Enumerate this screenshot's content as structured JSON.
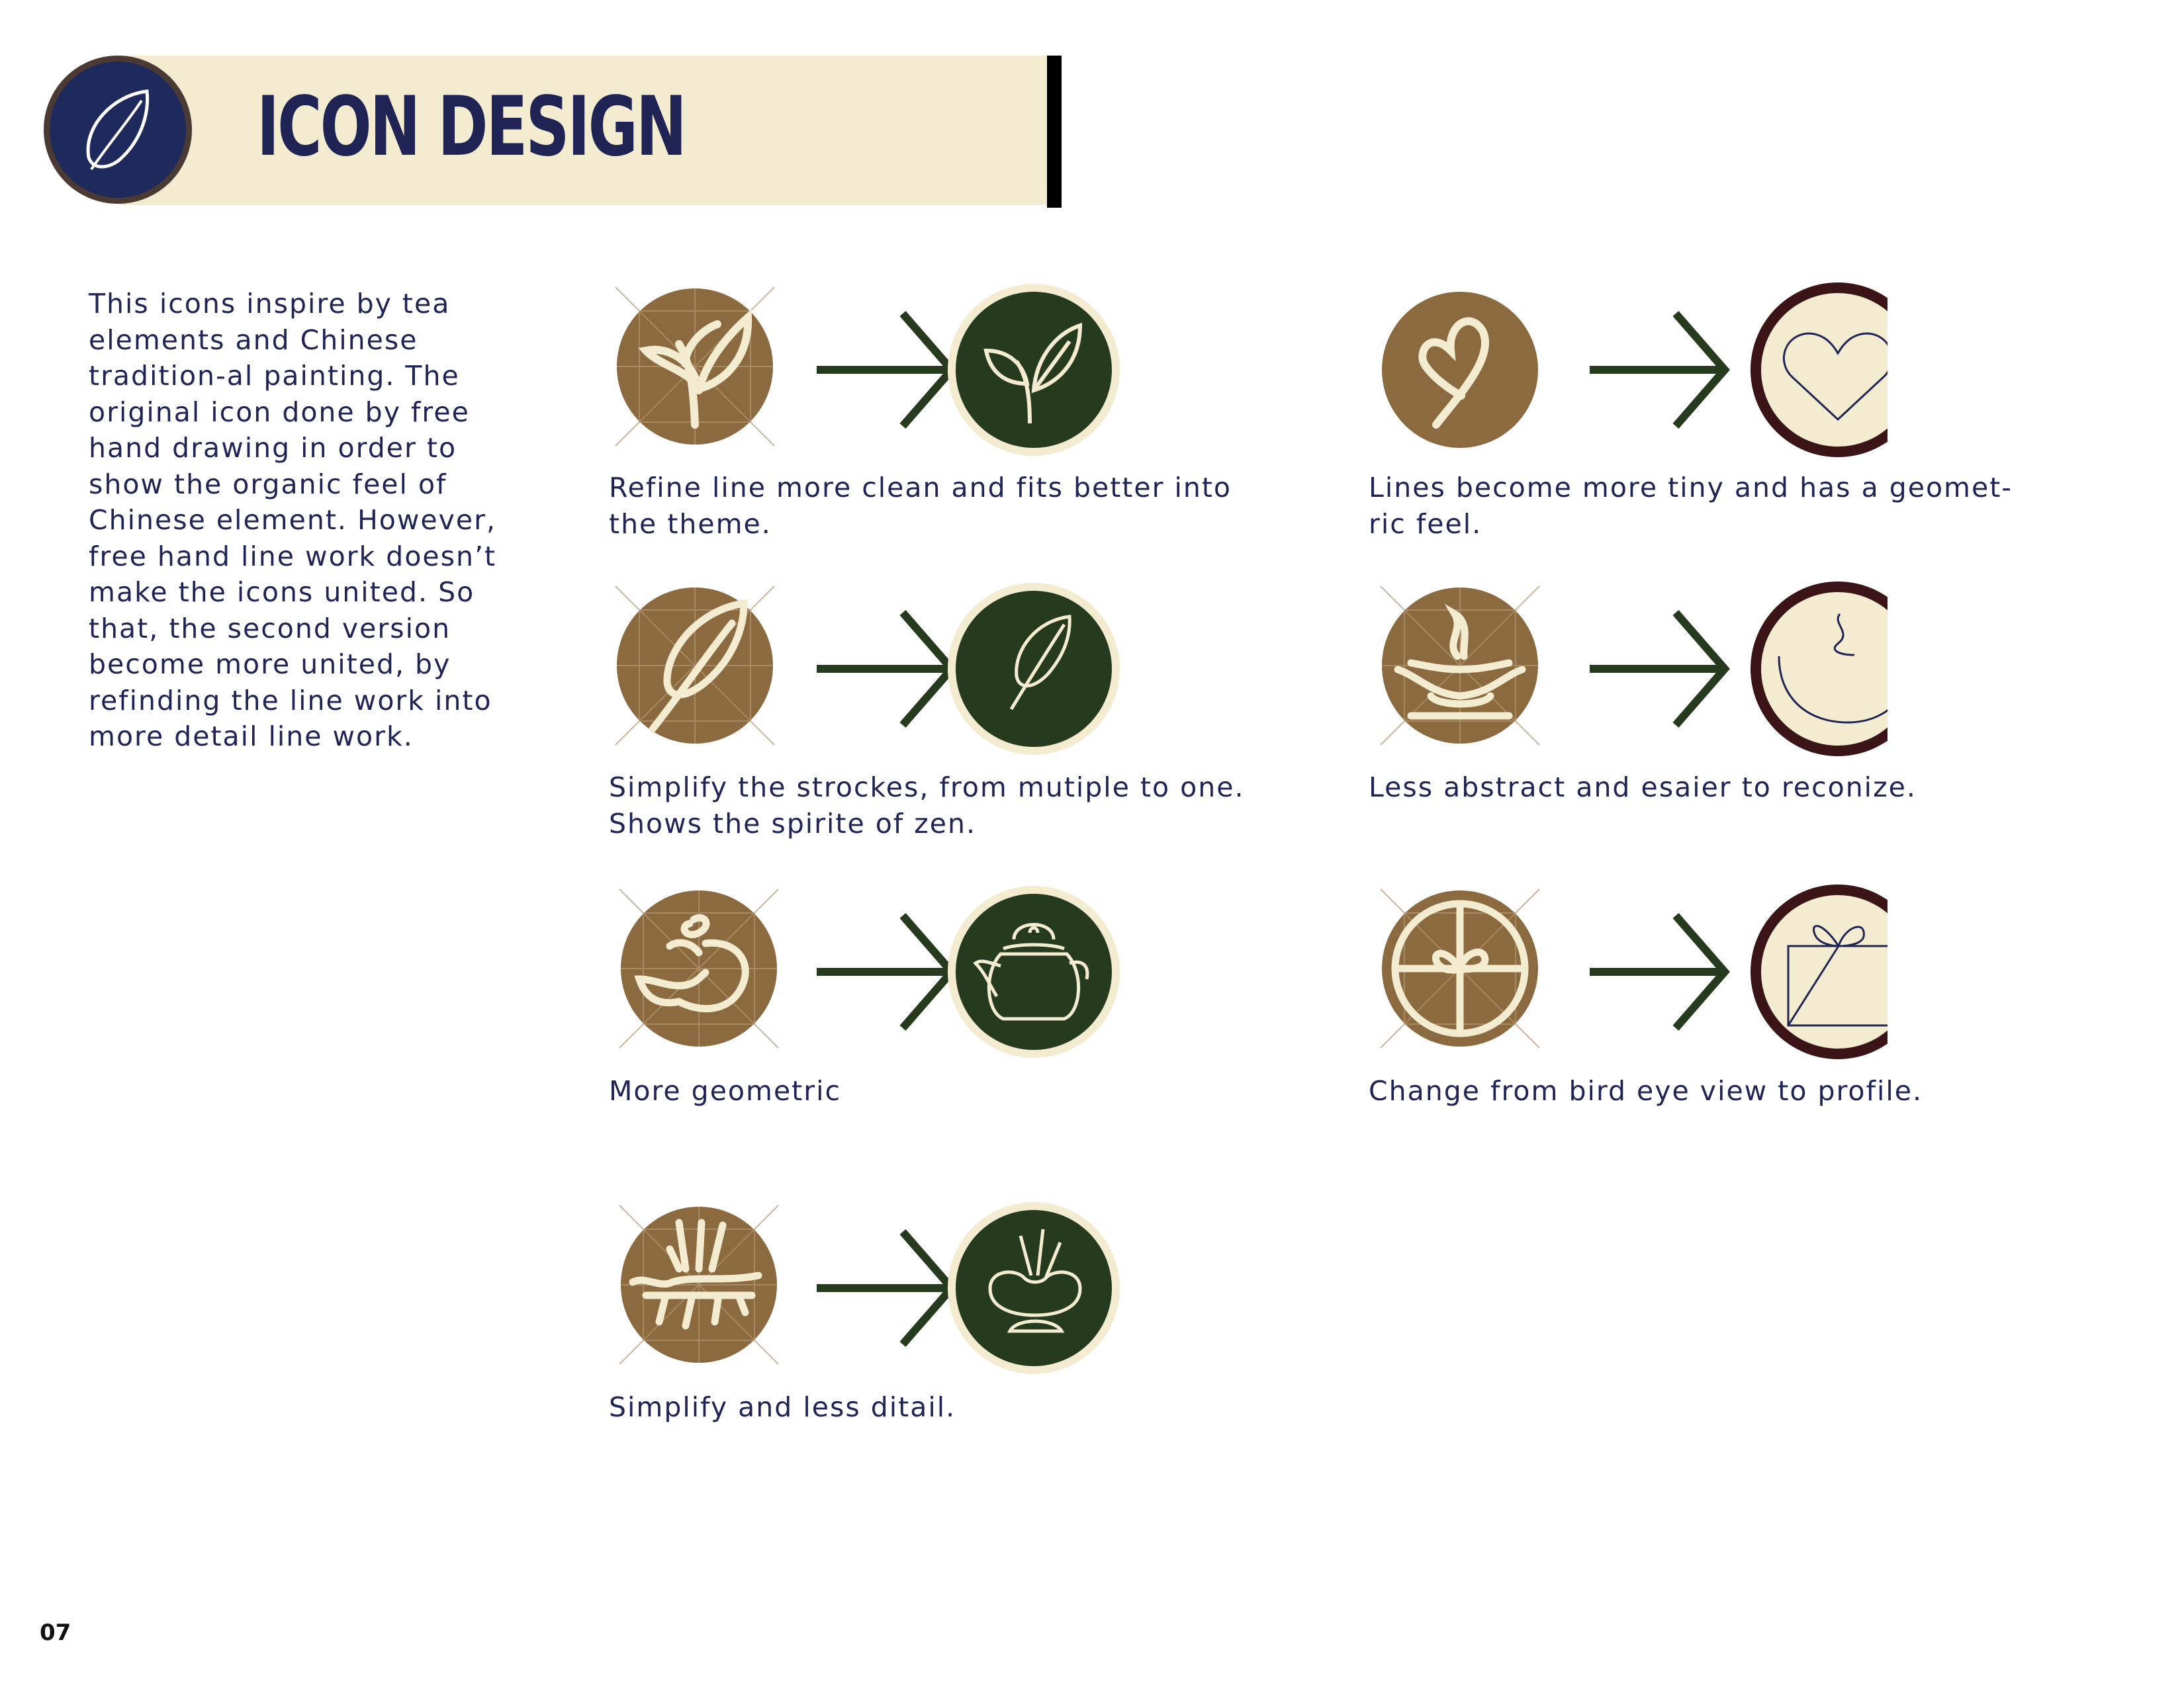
{
  "header": {
    "title": "ICON DESIGN",
    "badge_icon": "leaf-icon"
  },
  "intro": {
    "text": "This icons inspire by tea elements and Chinese tradition-al painting. The original icon done by free hand drawing in order to show the organic feel of Chinese element. However, free hand line work doesn’t make the icons united. So that, the second version become more united, by refinding the line work into more detail line work."
  },
  "colors": {
    "brown": "#8c6a3f",
    "dark_green": "#263a1e",
    "cream": "#f3ecd1",
    "maroon": "#3a1416",
    "navy": "#1f2454",
    "arrow_green": "#263a1e"
  },
  "comparisons": [
    {
      "before_icon": "tea-sprout-sketch-icon",
      "after_icon": "tea-sprout-icon",
      "caption_line1": "Refine line more clean and fits better into",
      "caption_line2": "the theme."
    },
    {
      "before_icon": "heart-sketch-icon",
      "after_icon": "heart-icon",
      "caption_line1": "Lines become more tiny and has a geomet-",
      "caption_line2": "ric feel."
    },
    {
      "before_icon": "leaf-sketch-icon",
      "after_icon": "leaf-icon",
      "caption_line1": "Simplify the strockes, from mutiple to one.",
      "caption_line2": "Shows the spirite of zen."
    },
    {
      "before_icon": "steaming-cup-sketch-icon",
      "after_icon": "steaming-bowl-icon",
      "caption_line1": "Less abstract and esaier to reconize.",
      "caption_line2": ""
    },
    {
      "before_icon": "teapot-sketch-icon",
      "after_icon": "teapot-icon",
      "caption_line1": "More geometric",
      "caption_line2": ""
    },
    {
      "before_icon": "gift-top-view-sketch-icon",
      "after_icon": "gift-box-icon",
      "caption_line1": "Change from bird eye view to profile.",
      "caption_line2": ""
    },
    {
      "before_icon": "tea-ceremony-sketch-icon",
      "after_icon": "tea-bowl-icon",
      "caption_line1": "Simplify and less ditail.",
      "caption_line2": ""
    }
  ],
  "page_number": "07"
}
